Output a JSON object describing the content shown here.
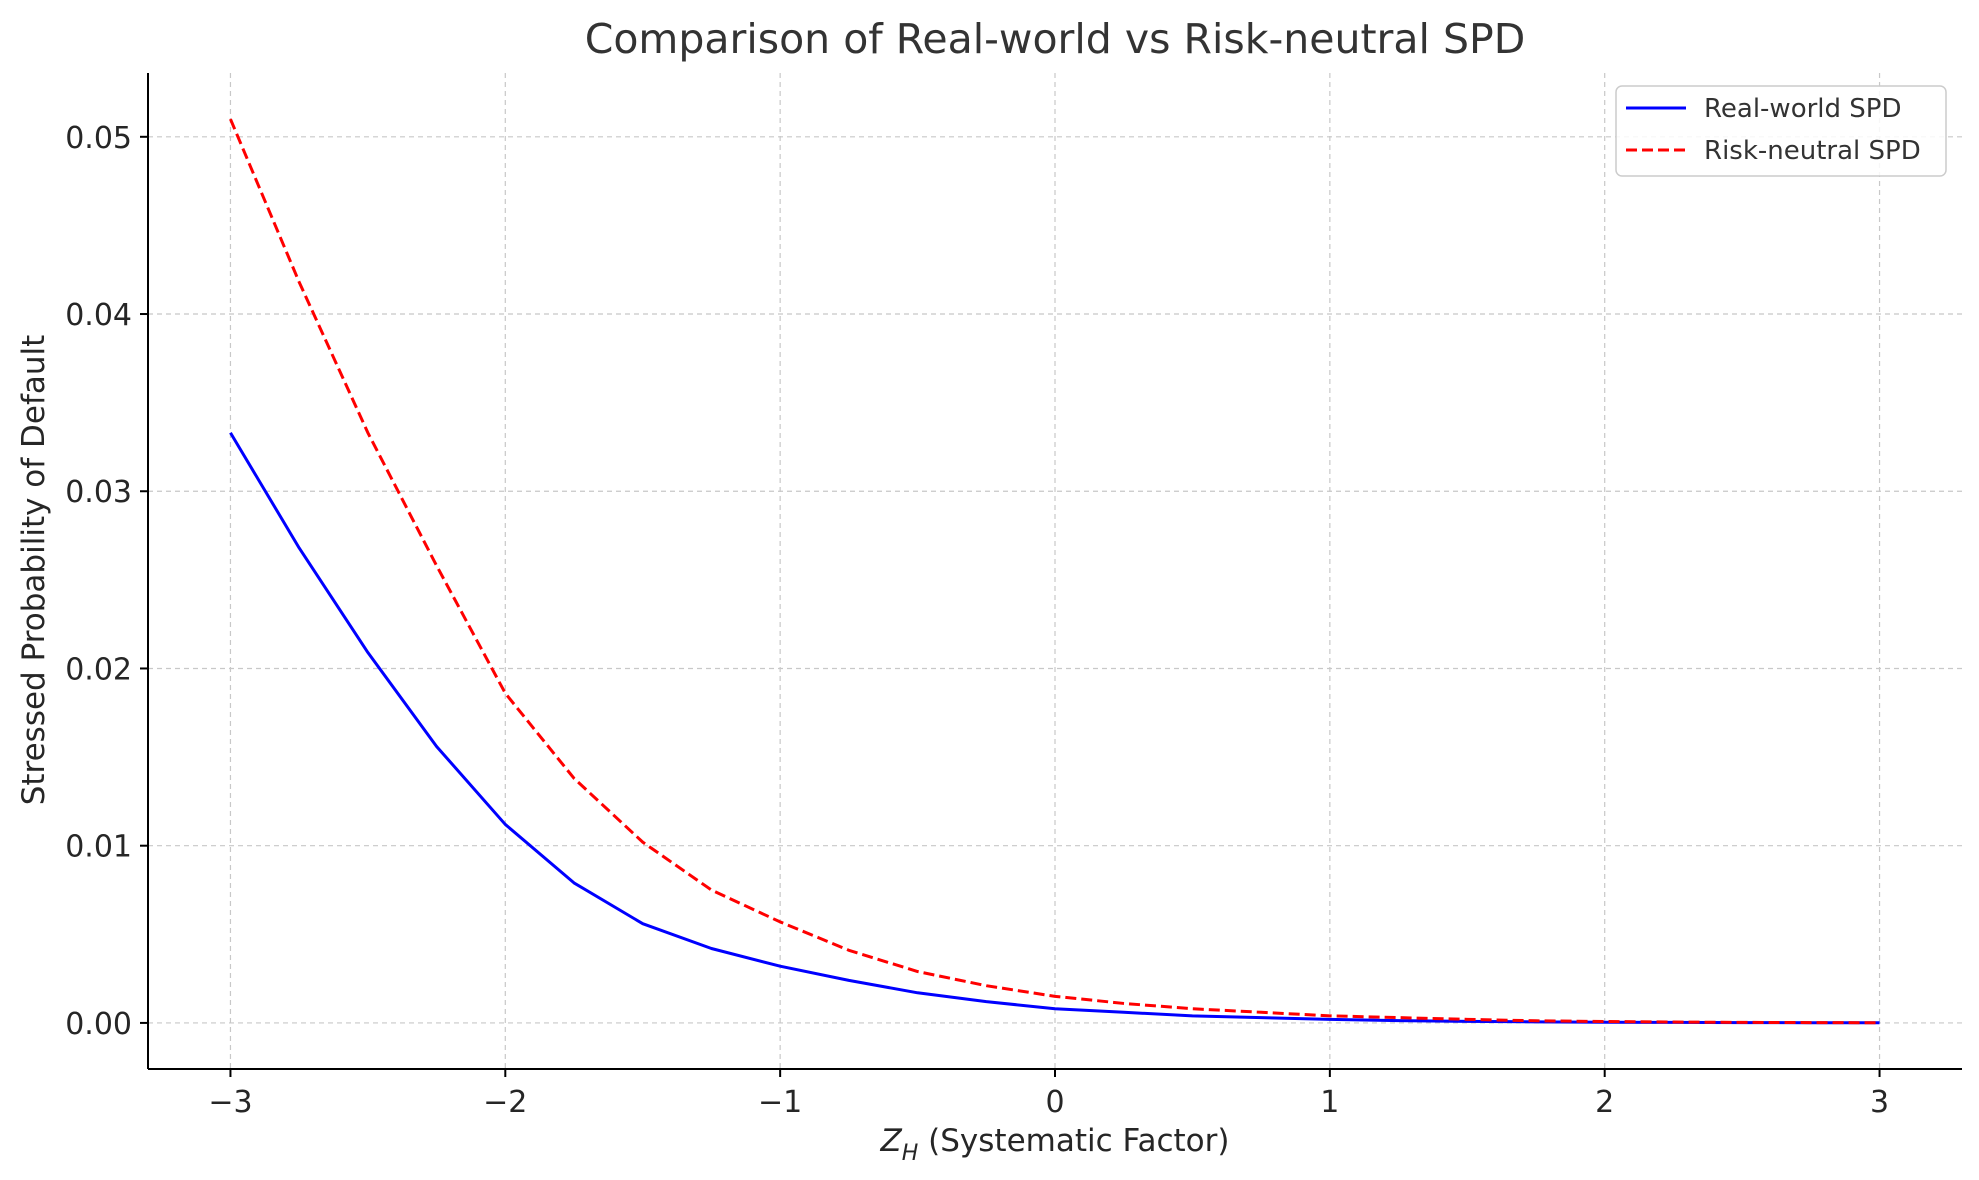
{
  "chart_data": {
    "type": "line",
    "title": "Comparison of Real-world vs Risk-neutral SPD",
    "xlabel_main": "Z",
    "xlabel_sub": "H",
    "xlabel_rest": " (Systematic Factor)",
    "ylabel": "Stressed Probability of Default",
    "xlim": [
      -3.3,
      3.3
    ],
    "ylim": [
      -0.0026,
      0.0536
    ],
    "grid": true,
    "legend_position": "top-right",
    "x_ticks": [
      -3,
      -2,
      -1,
      0,
      1,
      2,
      3
    ],
    "x_tick_labels": [
      "−3",
      "−2",
      "−1",
      "0",
      "1",
      "2",
      "3"
    ],
    "y_ticks": [
      0.0,
      0.01,
      0.02,
      0.03,
      0.04,
      0.05
    ],
    "y_tick_labels": [
      "0.00",
      "0.01",
      "0.02",
      "0.03",
      "0.04",
      "0.05"
    ],
    "x": [
      -3.0,
      -2.75,
      -2.5,
      -2.25,
      -2.0,
      -1.75,
      -1.5,
      -1.25,
      -1.0,
      -0.75,
      -0.5,
      -0.25,
      0.0,
      0.25,
      0.5,
      0.75,
      1.0,
      1.25,
      1.5,
      1.75,
      2.0,
      2.25,
      2.5,
      2.75,
      3.0
    ],
    "series": [
      {
        "name": "Real-world SPD",
        "color": "#0000ff",
        "style": "solid",
        "values": [
          0.0333,
          0.0268,
          0.0209,
          0.0156,
          0.0112,
          0.0079,
          0.0056,
          0.0042,
          0.0032,
          0.0024,
          0.0017,
          0.0012,
          0.0008,
          0.0006,
          0.0004,
          0.0003,
          0.0002,
          0.00013,
          9e-05,
          6e-05,
          4e-05,
          3e-05,
          2e-05,
          1e-05,
          1e-05
        ]
      },
      {
        "name": "Risk-neutral SPD",
        "color": "#ff0000",
        "style": "dashed",
        "values": [
          0.051,
          0.0418,
          0.0333,
          0.0258,
          0.0186,
          0.0138,
          0.0102,
          0.0075,
          0.0057,
          0.0041,
          0.0029,
          0.0021,
          0.0015,
          0.0011,
          0.0008,
          0.0006,
          0.0004,
          0.0003,
          0.0002,
          0.00012,
          8e-05,
          5e-05,
          3e-05,
          2e-05,
          1e-05
        ]
      }
    ]
  }
}
